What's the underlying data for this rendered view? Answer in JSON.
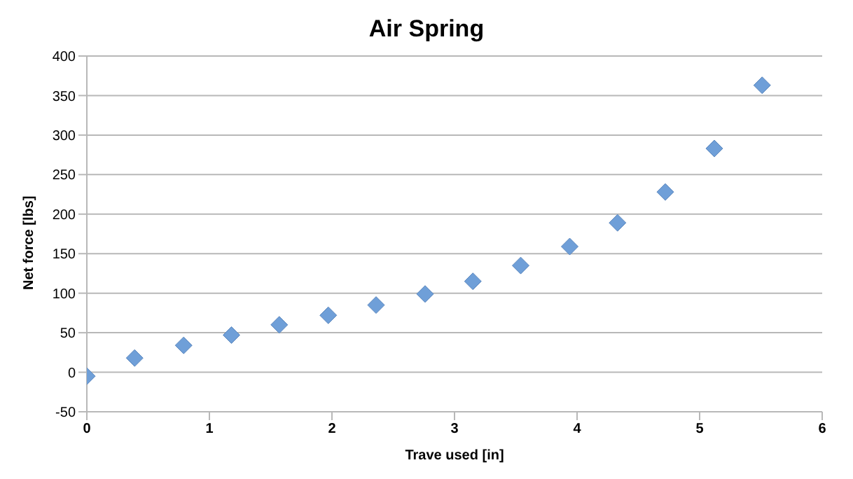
{
  "chart_data": {
    "type": "scatter",
    "title": "Air Spring",
    "xlabel": "Trave used [in]",
    "ylabel": "Net force [lbs]",
    "x": [
      0,
      0.39,
      0.79,
      1.18,
      1.57,
      1.97,
      2.36,
      2.76,
      3.15,
      3.54,
      3.94,
      4.33,
      4.72,
      5.12,
      5.51
    ],
    "series": [
      {
        "color": "#6f9fd8",
        "values": [
          -5,
          18,
          34,
          47,
          60,
          72,
          85,
          99,
          115,
          135,
          159,
          189,
          228,
          283,
          363
        ]
      }
    ],
    "xlim": [
      0,
      6
    ],
    "xticks": [
      0,
      1,
      2,
      3,
      4,
      5,
      6
    ],
    "ylim": [
      -50,
      400
    ],
    "yticks": [
      -50,
      0,
      50,
      100,
      150,
      200,
      250,
      300,
      350,
      400
    ],
    "grid": "y",
    "legend": false,
    "marker": "diamond"
  }
}
